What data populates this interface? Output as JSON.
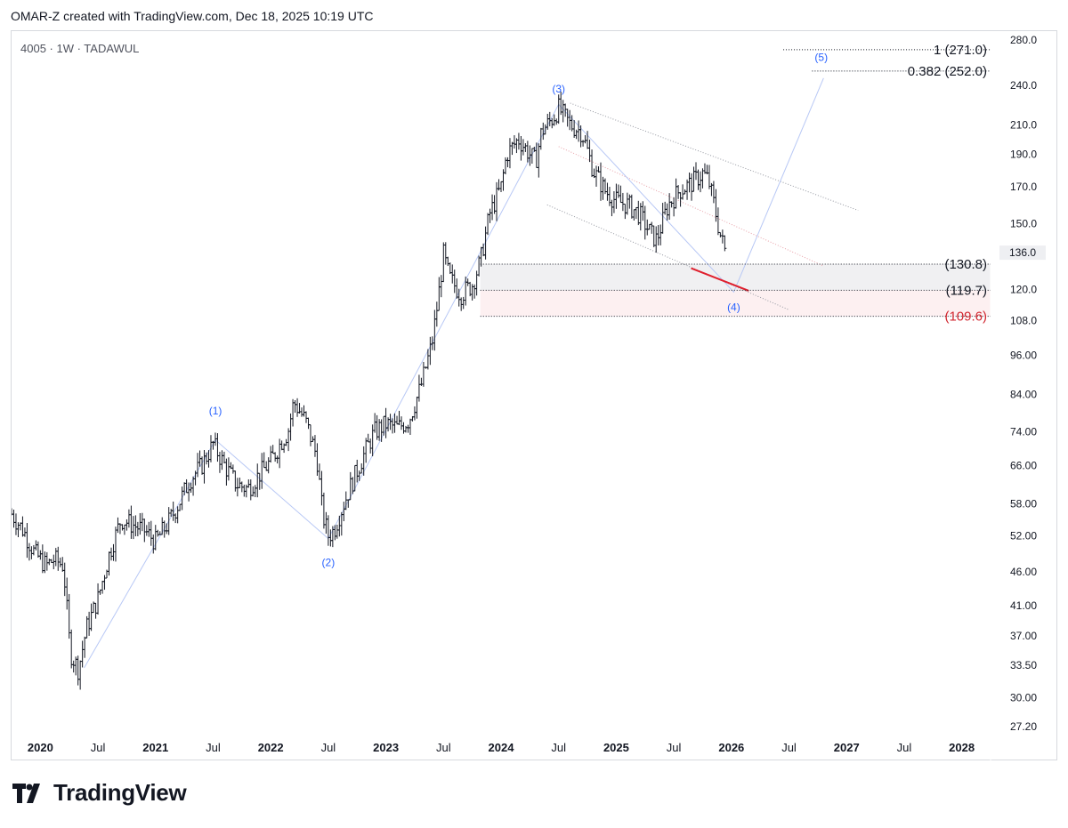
{
  "header": {
    "text": "OMAR-Z created with TradingView.com, Dec 18, 2025 10:19 UTC"
  },
  "footer": {
    "brand": "TradingView"
  },
  "chart_data": {
    "type": "bar",
    "symbol_label": "4005 · 1W · TADAWUL",
    "scale": "log",
    "ylim": [
      27.2,
      280
    ],
    "xlim": [
      2019.75,
      2028.25
    ],
    "price_ticks": [
      "280.0",
      "240.0",
      "210.0",
      "190.0",
      "170.0",
      "150.0",
      "120.0",
      "108.0",
      "96.00",
      "84.00",
      "74.00",
      "66.00",
      "58.00",
      "52.00",
      "46.00",
      "41.00",
      "37.00",
      "33.50",
      "30.00",
      "27.20"
    ],
    "current_price": "136.0",
    "time_labels": [
      {
        "t": 2020.0,
        "label": "2020",
        "bold": true
      },
      {
        "t": 2020.5,
        "label": "Jul",
        "bold": false
      },
      {
        "t": 2021.0,
        "label": "2021",
        "bold": true
      },
      {
        "t": 2021.5,
        "label": "Jul",
        "bold": false
      },
      {
        "t": 2022.0,
        "label": "2022",
        "bold": true
      },
      {
        "t": 2022.5,
        "label": "Jul",
        "bold": false
      },
      {
        "t": 2023.0,
        "label": "2023",
        "bold": true
      },
      {
        "t": 2023.5,
        "label": "Jul",
        "bold": false
      },
      {
        "t": 2024.0,
        "label": "2024",
        "bold": true
      },
      {
        "t": 2024.5,
        "label": "Jul",
        "bold": false
      },
      {
        "t": 2025.0,
        "label": "2025",
        "bold": true
      },
      {
        "t": 2025.5,
        "label": "Jul",
        "bold": false
      },
      {
        "t": 2026.0,
        "label": "2026",
        "bold": true
      },
      {
        "t": 2026.5,
        "label": "Jul",
        "bold": false
      },
      {
        "t": 2027.0,
        "label": "2027",
        "bold": true
      },
      {
        "t": 2027.5,
        "label": "Jul",
        "bold": false
      },
      {
        "t": 2028.0,
        "label": "2028",
        "bold": true
      }
    ],
    "price_path": [
      [
        2019.75,
        56
      ],
      [
        2019.85,
        53
      ],
      [
        2019.95,
        49
      ],
      [
        2020.05,
        47
      ],
      [
        2020.12,
        48
      ],
      [
        2020.2,
        47
      ],
      [
        2020.26,
        35
      ],
      [
        2020.33,
        33
      ],
      [
        2020.4,
        38
      ],
      [
        2020.5,
        42
      ],
      [
        2020.6,
        49
      ],
      [
        2020.7,
        55
      ],
      [
        2020.8,
        54
      ],
      [
        2020.9,
        53
      ],
      [
        2021.0,
        51
      ],
      [
        2021.1,
        54
      ],
      [
        2021.2,
        58
      ],
      [
        2021.3,
        63
      ],
      [
        2021.4,
        66
      ],
      [
        2021.5,
        71
      ],
      [
        2021.6,
        66
      ],
      [
        2021.7,
        62
      ],
      [
        2021.8,
        61
      ],
      [
        2021.9,
        64
      ],
      [
        2022.0,
        67
      ],
      [
        2022.1,
        72
      ],
      [
        2022.15,
        74
      ],
      [
        2022.2,
        82
      ],
      [
        2022.3,
        77
      ],
      [
        2022.4,
        68
      ],
      [
        2022.45,
        56
      ],
      [
        2022.5,
        52
      ],
      [
        2022.55,
        53
      ],
      [
        2022.6,
        56
      ],
      [
        2022.7,
        62
      ],
      [
        2022.8,
        68
      ],
      [
        2022.9,
        74
      ],
      [
        2023.0,
        76
      ],
      [
        2023.1,
        75
      ],
      [
        2023.2,
        77
      ],
      [
        2023.3,
        86
      ],
      [
        2023.4,
        100
      ],
      [
        2023.45,
        115
      ],
      [
        2023.5,
        135
      ],
      [
        2023.55,
        125
      ],
      [
        2023.65,
        118
      ],
      [
        2023.75,
        122
      ],
      [
        2023.82,
        132
      ],
      [
        2023.9,
        155
      ],
      [
        2024.0,
        170
      ],
      [
        2024.05,
        190
      ],
      [
        2024.15,
        200
      ],
      [
        2024.2,
        195
      ],
      [
        2024.3,
        185
      ],
      [
        2024.35,
        205
      ],
      [
        2024.45,
        215
      ],
      [
        2024.5,
        222
      ],
      [
        2024.6,
        210
      ],
      [
        2024.7,
        205
      ],
      [
        2024.8,
        180
      ],
      [
        2024.9,
        168
      ],
      [
        2025.0,
        162
      ],
      [
        2025.1,
        160
      ],
      [
        2025.2,
        155
      ],
      [
        2025.3,
        145
      ],
      [
        2025.35,
        142
      ],
      [
        2025.45,
        160
      ],
      [
        2025.55,
        168
      ],
      [
        2025.65,
        172
      ],
      [
        2025.75,
        178
      ],
      [
        2025.8,
        174
      ],
      [
        2025.85,
        160
      ],
      [
        2025.9,
        145
      ],
      [
        2025.96,
        134
      ]
    ],
    "waves": [
      {
        "label": "(1)",
        "t": 2021.52,
        "price": 79.5
      },
      {
        "label": "(2)",
        "t": 2022.5,
        "price": 47.5
      },
      {
        "label": "(3)",
        "t": 2024.5,
        "price": 237
      },
      {
        "label": "(4)",
        "t": 2026.02,
        "price": 113
      },
      {
        "label": "(5)",
        "t": 2026.78,
        "price": 264
      }
    ],
    "wave_path": [
      [
        2020.38,
        33.2
      ],
      [
        2021.52,
        72
      ],
      [
        2022.5,
        51.5
      ],
      [
        2024.5,
        225
      ],
      [
        2026.02,
        119
      ],
      [
        2026.8,
        246
      ]
    ],
    "levels": [
      {
        "label": "1 (271.0)",
        "price": 271.0,
        "start": 2026.45,
        "color": "#131722"
      },
      {
        "label": "0.382 (252.0)",
        "price": 252.0,
        "start": 2026.7,
        "color": "#131722"
      },
      {
        "label": "(130.8)",
        "price": 130.8,
        "start": 2023.82,
        "color": "#131722"
      },
      {
        "label": "(119.7)",
        "price": 119.7,
        "start": 2023.82,
        "color": "#131722"
      },
      {
        "label": "(109.6)",
        "price": 109.6,
        "start": 2023.82,
        "color": "#d1262f"
      }
    ],
    "channel_upper": [
      [
        2024.6,
        226
      ],
      [
        2027.1,
        157
      ]
    ],
    "channel_lower": [
      [
        2024.4,
        160
      ],
      [
        2026.5,
        112
      ]
    ],
    "channel_mid": [
      [
        2024.5,
        195
      ],
      [
        2026.8,
        130
      ]
    ],
    "red_segment": [
      [
        2025.65,
        129
      ],
      [
        2026.15,
        119.5
      ]
    ],
    "colors": {
      "bars": "#131722",
      "wave": "#2962ff",
      "wave_line": "#b8c8f5",
      "zone_gray": "#f0f0f2",
      "zone_red": "#fdf0f1",
      "red": "#e0202e"
    }
  }
}
